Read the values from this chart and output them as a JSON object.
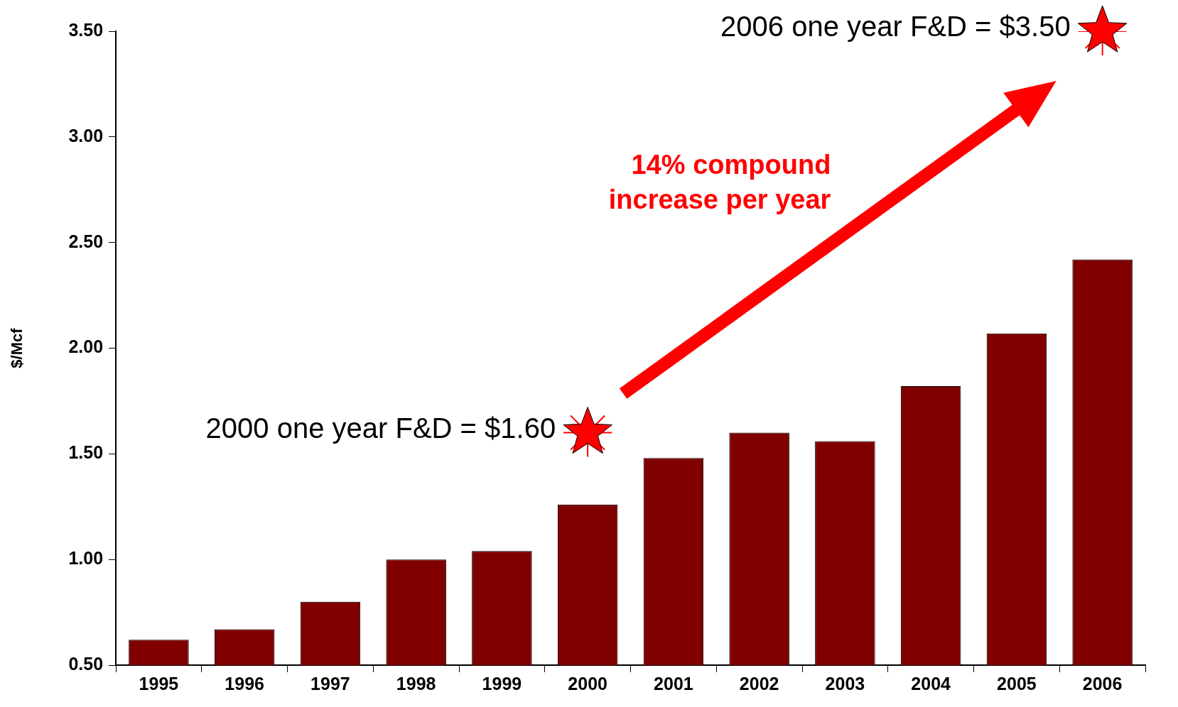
{
  "chart_data": {
    "type": "bar",
    "ylabel": "$/Mcf",
    "categories": [
      "1995",
      "1996",
      "1997",
      "1998",
      "1999",
      "2000",
      "2001",
      "2002",
      "2003",
      "2004",
      "2005",
      "2006"
    ],
    "series": [
      {
        "color": "#800000",
        "values": [
          0.62,
          0.67,
          0.8,
          1.0,
          1.04,
          1.26,
          1.48,
          1.6,
          1.56,
          1.82,
          2.07,
          2.42
        ]
      },
      {
        "type": "scatter",
        "color": "#ff0000",
        "marker": "star",
        "values": [
          null,
          null,
          null,
          null,
          null,
          1.6,
          null,
          null,
          null,
          null,
          null,
          3.5
        ]
      }
    ],
    "ylim": [
      0.5,
      3.5
    ],
    "yticks": [
      {
        "value": 0.5,
        "label": "0.50"
      },
      {
        "value": 1.0,
        "label": "1.00"
      },
      {
        "value": 1.5,
        "label": "1.50"
      },
      {
        "value": 2.0,
        "label": "2.00"
      },
      {
        "value": 2.5,
        "label": "2.50"
      },
      {
        "value": 3.0,
        "label": "3.00"
      },
      {
        "value": 3.5,
        "label": "3.50"
      }
    ],
    "grid": false,
    "legend": false,
    "annotations": [
      {
        "text": "2000 one year F&D = $1.60",
        "x": "2000",
        "y": 1.6
      },
      {
        "text": "2006 one year F&D = $3.50",
        "x": "2006",
        "y": 3.5
      },
      "14% compound increase per year"
    ]
  }
}
